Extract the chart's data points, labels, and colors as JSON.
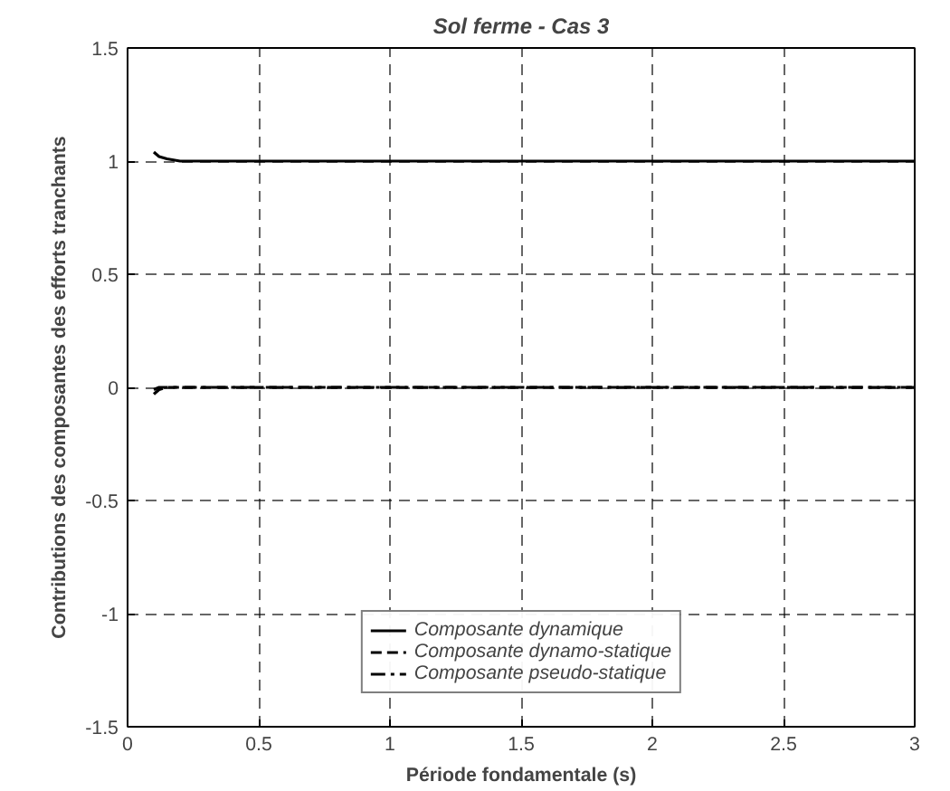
{
  "chart_data": {
    "type": "line",
    "title": "Sol ferme - Cas 3",
    "xlabel": "Période fondamentale (s)",
    "ylabel": "Contributions des composantes des efforts tranchants",
    "x": [
      0.1,
      0.12,
      0.15,
      0.2,
      0.5,
      1,
      1.5,
      2,
      2.5,
      3
    ],
    "series": [
      {
        "name": "Composante dynamique",
        "color": "#000000",
        "line_style": "solid",
        "values": [
          1.04,
          1.02,
          1.01,
          1.0,
          1.0,
          1.0,
          1.0,
          1.0,
          1.0,
          1.0
        ]
      },
      {
        "name": "Composante dynamo-statique",
        "color": "#000000",
        "line_style": "dashed",
        "values": [
          -0.03,
          -0.01,
          0.0,
          0.0,
          0.0,
          0.0,
          0.0,
          0.0,
          0.0,
          0.0
        ]
      },
      {
        "name": "Composante pseudo-statique",
        "color": "#000000",
        "line_style": "dashdot",
        "values": [
          -0.01,
          0.0,
          0.0,
          0.0,
          0.0,
          0.0,
          0.0,
          0.0,
          0.0,
          0.0
        ]
      }
    ],
    "xlim": [
      0,
      3
    ],
    "ylim": [
      -1.5,
      1.5
    ],
    "xticks": [
      0,
      0.5,
      1,
      1.5,
      2,
      2.5,
      3
    ],
    "yticks": [
      -1.5,
      -1,
      -0.5,
      0,
      0.5,
      1,
      1.5
    ],
    "grid": true,
    "legend": "bottom",
    "marker": "none"
  }
}
